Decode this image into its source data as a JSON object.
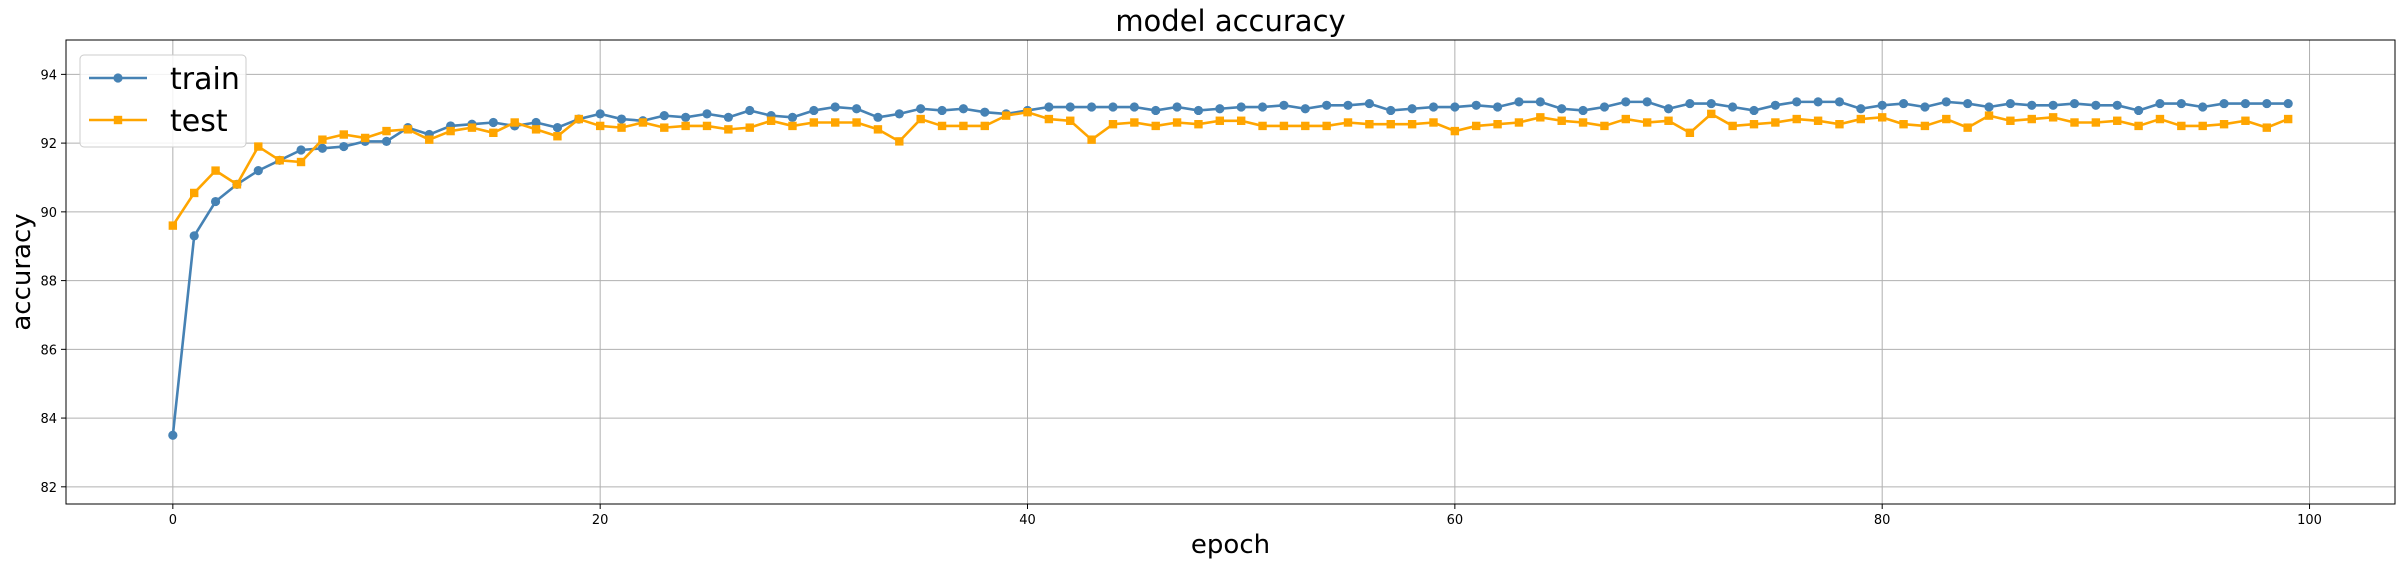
{
  "chart_data": {
    "type": "line",
    "title": "model accuracy",
    "xlabel": "epoch",
    "ylabel": "accuracy",
    "xlim": [
      -5,
      104
    ],
    "ylim": [
      81.5,
      95
    ],
    "xticks": [
      0,
      20,
      40,
      60,
      80,
      100
    ],
    "yticks": [
      82,
      84,
      86,
      88,
      90,
      92,
      94
    ],
    "grid": true,
    "legend_position": "top-left",
    "series": [
      {
        "name": "train",
        "color": "#4682b4",
        "marker": "circle",
        "x": [
          0,
          1,
          2,
          3,
          4,
          5,
          6,
          7,
          8,
          9,
          10,
          11,
          12,
          13,
          14,
          15,
          16,
          17,
          18,
          19,
          20,
          21,
          22,
          23,
          24,
          25,
          26,
          27,
          28,
          29,
          30,
          31,
          32,
          33,
          34,
          35,
          36,
          37,
          38,
          39,
          40,
          41,
          42,
          43,
          44,
          45,
          46,
          47,
          48,
          49,
          50,
          51,
          52,
          53,
          54,
          55,
          56,
          57,
          58,
          59,
          60,
          61,
          62,
          63,
          64,
          65,
          66,
          67,
          68,
          69,
          70,
          71,
          72,
          73,
          74,
          75,
          76,
          77,
          78,
          79,
          80,
          81,
          82,
          83,
          84,
          85,
          86,
          87,
          88,
          89,
          90,
          91,
          92,
          93,
          94,
          95,
          96,
          97,
          98,
          99
        ],
        "values": [
          83.5,
          89.3,
          90.3,
          90.8,
          91.2,
          91.5,
          91.8,
          91.85,
          91.9,
          92.05,
          92.05,
          92.45,
          92.25,
          92.5,
          92.55,
          92.6,
          92.5,
          92.6,
          92.45,
          92.7,
          92.85,
          92.7,
          92.65,
          92.8,
          92.75,
          92.85,
          92.75,
          92.95,
          92.8,
          92.75,
          92.95,
          93.05,
          93.0,
          92.75,
          92.85,
          93.0,
          92.95,
          93.0,
          92.9,
          92.85,
          92.95,
          93.05,
          93.05,
          93.05,
          93.05,
          93.05,
          92.95,
          93.05,
          92.95,
          93.0,
          93.05,
          93.05,
          93.1,
          93.0,
          93.1,
          93.1,
          93.15,
          92.95,
          93.0,
          93.05,
          93.05,
          93.1,
          93.05,
          93.2,
          93.2,
          93.0,
          92.95,
          93.05,
          93.2,
          93.2,
          93.0,
          93.15,
          93.15,
          93.05,
          92.95,
          93.1,
          93.2,
          93.2,
          93.2,
          93.0,
          93.1,
          93.15,
          93.05,
          93.2,
          93.15,
          93.05,
          93.15,
          93.1,
          93.1,
          93.15,
          93.1,
          93.1,
          92.95,
          93.15,
          93.15,
          93.05,
          93.15,
          93.15,
          93.15,
          93.15
        ]
      },
      {
        "name": "test",
        "color": "#ffa500",
        "marker": "square",
        "x": [
          0,
          1,
          2,
          3,
          4,
          5,
          6,
          7,
          8,
          9,
          10,
          11,
          12,
          13,
          14,
          15,
          16,
          17,
          18,
          19,
          20,
          21,
          22,
          23,
          24,
          25,
          26,
          27,
          28,
          29,
          30,
          31,
          32,
          33,
          34,
          35,
          36,
          37,
          38,
          39,
          40,
          41,
          42,
          43,
          44,
          45,
          46,
          47,
          48,
          49,
          50,
          51,
          52,
          53,
          54,
          55,
          56,
          57,
          58,
          59,
          60,
          61,
          62,
          63,
          64,
          65,
          66,
          67,
          68,
          69,
          70,
          71,
          72,
          73,
          74,
          75,
          76,
          77,
          78,
          79,
          80,
          81,
          82,
          83,
          84,
          85,
          86,
          87,
          88,
          89,
          90,
          91,
          92,
          93,
          94,
          95,
          96,
          97,
          98,
          99
        ],
        "values": [
          89.6,
          90.55,
          91.2,
          90.8,
          91.9,
          91.5,
          91.45,
          92.1,
          92.25,
          92.15,
          92.35,
          92.4,
          92.1,
          92.35,
          92.45,
          92.3,
          92.6,
          92.4,
          92.2,
          92.7,
          92.5,
          92.45,
          92.6,
          92.45,
          92.5,
          92.5,
          92.4,
          92.45,
          92.65,
          92.5,
          92.6,
          92.6,
          92.6,
          92.4,
          92.05,
          92.7,
          92.5,
          92.5,
          92.5,
          92.8,
          92.9,
          92.7,
          92.65,
          92.1,
          92.55,
          92.6,
          92.5,
          92.6,
          92.55,
          92.65,
          92.65,
          92.5,
          92.5,
          92.5,
          92.5,
          92.6,
          92.55,
          92.55,
          92.55,
          92.6,
          92.35,
          92.5,
          92.55,
          92.6,
          92.75,
          92.65,
          92.6,
          92.5,
          92.7,
          92.6,
          92.65,
          92.3,
          92.85,
          92.5,
          92.55,
          92.6,
          92.7,
          92.65,
          92.55,
          92.7,
          92.75,
          92.55,
          92.5,
          92.7,
          92.45,
          92.8,
          92.65,
          92.7,
          92.75,
          92.6,
          92.6,
          92.65,
          92.5,
          92.7,
          92.5,
          92.5,
          92.55,
          92.65,
          92.45,
          92.7
        ]
      }
    ]
  }
}
